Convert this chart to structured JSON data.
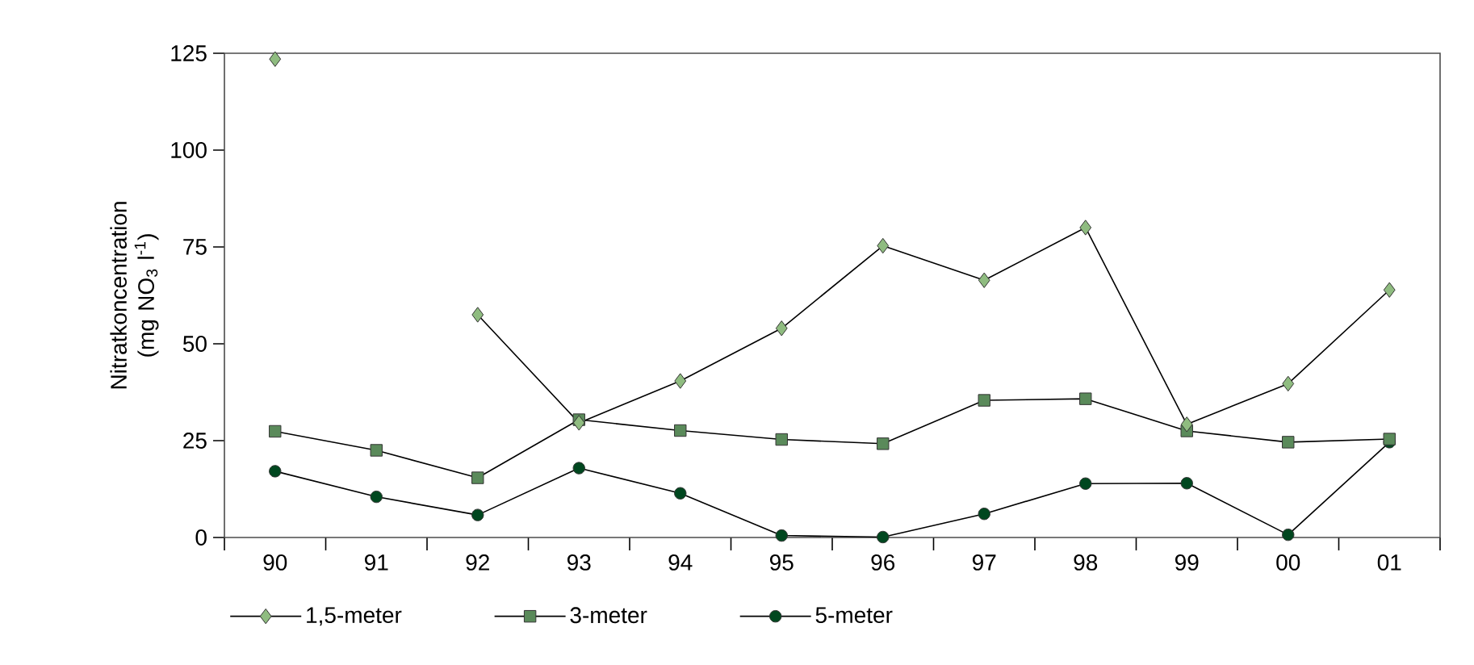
{
  "chart_data": {
    "type": "line",
    "ylabel": "Nitratkoncentration (mg NO$_{3}$ l$^{-1}$)",
    "categories": [
      "90",
      "91",
      "92",
      "93",
      "94",
      "95",
      "96",
      "97",
      "98",
      "99",
      "00",
      "01"
    ],
    "series": [
      {
        "name": "1,5-meter",
        "color": "#8fbc80",
        "marker": "diamond",
        "values": [
          123.5,
          null,
          57.5,
          29.6,
          40.4,
          54,
          75.3,
          66.4,
          80,
          29.2,
          39.7,
          63.9
        ]
      },
      {
        "name": "3-meter",
        "color": "#5a8a5a",
        "marker": "square",
        "values": [
          27.4,
          22.5,
          15.4,
          30.4,
          27.6,
          25.3,
          24.2,
          35.4,
          35.8,
          27.5,
          24.6,
          25.4
        ]
      },
      {
        "name": "5-meter",
        "color": "#00471f",
        "marker": "circle",
        "values": [
          17.1,
          10.5,
          5.8,
          17.9,
          11.4,
          0.5,
          0.1,
          6.1,
          13.9,
          14.0,
          0.7,
          24.6
        ]
      }
    ],
    "ylim": [
      0,
      125
    ],
    "yticks": [
      0,
      25,
      50,
      75,
      100,
      125
    ],
    "legend": "bottom",
    "grid": false,
    "line_style": "solid"
  }
}
